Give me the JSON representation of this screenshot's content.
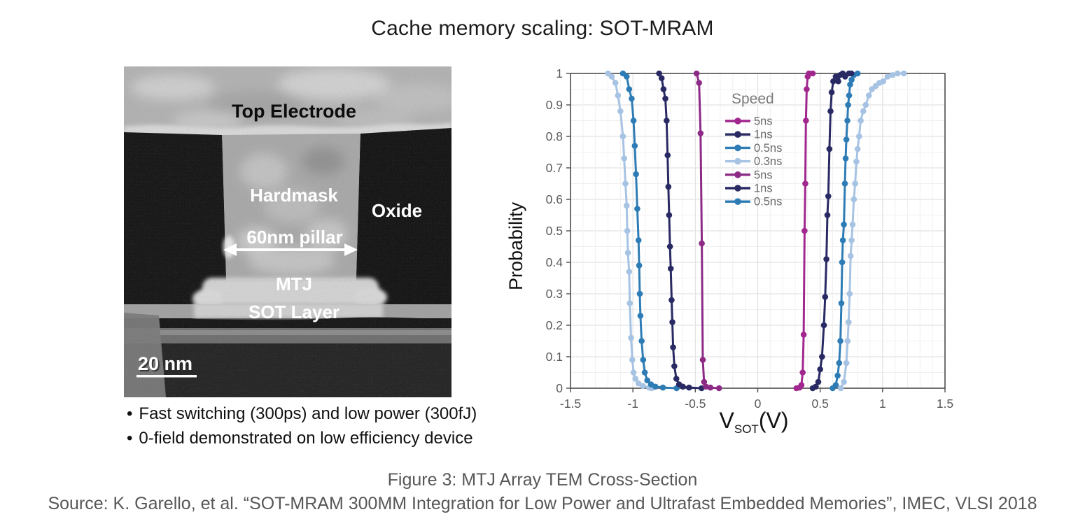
{
  "title": "Cache memory scaling: SOT-MRAM",
  "tem_figure": {
    "labels": {
      "top_electrode": "Top Electrode",
      "hardmask": "Hardmask",
      "oxide": "Oxide",
      "pillar": "60nm pillar",
      "mtj": "MTJ",
      "sot_layer": "SOT Layer",
      "scale_bar": "20 nm"
    },
    "bullets": {
      "marker": "•",
      "items": [
        "Fast switching (300ps) and low power (300fJ)",
        "0-field demonstrated on low efficiency device"
      ]
    }
  },
  "caption": {
    "figure_line": "Figure 3: MTJ Array TEM Cross-Section",
    "source_line": "Source: K. Garello, et al. “SOT-MRAM 300MM Integration for Low Power and Ultrafast Embedded Memories”, IMEC, VLSI 2018"
  },
  "chart_data": {
    "type": "line",
    "ylabel": "Probability",
    "xlabel_parts": {
      "main": "V",
      "sub": "SOT",
      "unit": "(V)"
    },
    "xlim": [
      -1.5,
      1.5
    ],
    "ylim": [
      0,
      1
    ],
    "grid": true,
    "xticks": [
      {
        "v": -1.5,
        "label": "-1.5"
      },
      {
        "v": -1,
        "label": "-1"
      },
      {
        "v": -0.5,
        "label": "-0.5"
      },
      {
        "v": 0,
        "label": "0"
      },
      {
        "v": 0.5,
        "label": "0.5"
      },
      {
        "v": 1,
        "label": "1"
      },
      {
        "v": 1.5,
        "label": "1.5"
      }
    ],
    "yticks": [
      {
        "v": 0,
        "label": "0"
      },
      {
        "v": 0.1,
        "label": "0.1"
      },
      {
        "v": 0.2,
        "label": "0.2"
      },
      {
        "v": 0.3,
        "label": "0.3"
      },
      {
        "v": 0.4,
        "label": "0.4"
      },
      {
        "v": 0.5,
        "label": "0.5"
      },
      {
        "v": 0.6,
        "label": "0.6"
      },
      {
        "v": 0.7,
        "label": "0.7"
      },
      {
        "v": 0.8,
        "label": "0.8"
      },
      {
        "v": 0.9,
        "label": "0.9"
      },
      {
        "v": 1,
        "label": "1"
      }
    ],
    "colors": {
      "magenta_bright": "#a1278e",
      "magenta": "#8c2a86",
      "navy": "#292a63",
      "blue": "#2e7cb5",
      "light_blue": "#a6c3e3"
    },
    "legend": {
      "title": "Speed",
      "position": "upper-center",
      "entries": [
        {
          "label": "5ns",
          "color": "#a1278e"
        },
        {
          "label": "1ns",
          "color": "#292a63"
        },
        {
          "label": "0.5ns",
          "color": "#2e7cb5"
        },
        {
          "label": "0.3ns",
          "color": "#a6c3e3"
        },
        {
          "label": "5ns",
          "color": "#8c2a86"
        },
        {
          "label": "1ns",
          "color": "#292a63"
        },
        {
          "label": "0.5ns",
          "color": "#2e7cb5"
        }
      ]
    },
    "series": [
      {
        "name": "0.3ns",
        "branch": "negative",
        "color": "#a6c3e3",
        "points": [
          [
            -1.2,
            1
          ],
          [
            -1.17,
            0.99
          ],
          [
            -1.14,
            0.97
          ],
          [
            -1.12,
            0.93
          ],
          [
            -1.1,
            0.88
          ],
          [
            -1.08,
            0.8
          ],
          [
            -1.07,
            0.73
          ],
          [
            -1.06,
            0.65
          ],
          [
            -1.05,
            0.58
          ],
          [
            -1.045,
            0.5
          ],
          [
            -1.04,
            0.43
          ],
          [
            -1.03,
            0.37
          ],
          [
            -1.025,
            0.27
          ],
          [
            -1.015,
            0.16
          ],
          [
            -1.005,
            0.09
          ],
          [
            -0.995,
            0.05
          ],
          [
            -0.98,
            0.03
          ],
          [
            -0.955,
            0.015
          ],
          [
            -0.92,
            0.007
          ],
          [
            -0.87,
            0.002
          ],
          [
            -0.85,
            0
          ]
        ]
      },
      {
        "name": "0.3ns",
        "branch": "positive",
        "color": "#a6c3e3",
        "points": [
          [
            0.665,
            0
          ],
          [
            0.69,
            0.02
          ],
          [
            0.71,
            0.08
          ],
          [
            0.72,
            0.15
          ],
          [
            0.728,
            0.21
          ],
          [
            0.736,
            0.3
          ],
          [
            0.744,
            0.42
          ],
          [
            0.752,
            0.47
          ],
          [
            0.76,
            0.52
          ],
          [
            0.77,
            0.6
          ],
          [
            0.78,
            0.65
          ],
          [
            0.79,
            0.72
          ],
          [
            0.8,
            0.76
          ],
          [
            0.812,
            0.8
          ],
          [
            0.825,
            0.85
          ],
          [
            0.845,
            0.88
          ],
          [
            0.865,
            0.9
          ],
          [
            0.89,
            0.93
          ],
          [
            0.915,
            0.95
          ],
          [
            0.945,
            0.96
          ],
          [
            0.975,
            0.97
          ],
          [
            1.005,
            0.975
          ],
          [
            1.04,
            0.99
          ],
          [
            1.08,
            0.995
          ],
          [
            1.12,
            1
          ],
          [
            1.17,
            1
          ]
        ]
      },
      {
        "name": "0.5ns",
        "branch": "negative",
        "color": "#2e7cb5",
        "points": [
          [
            -1.08,
            1
          ],
          [
            -1.05,
            0.99
          ],
          [
            -1.03,
            0.95
          ],
          [
            -1.01,
            0.92
          ],
          [
            -0.995,
            0.85
          ],
          [
            -0.985,
            0.77
          ],
          [
            -0.975,
            0.68
          ],
          [
            -0.965,
            0.57
          ],
          [
            -0.955,
            0.47
          ],
          [
            -0.95,
            0.39
          ],
          [
            -0.945,
            0.3
          ],
          [
            -0.94,
            0.23
          ],
          [
            -0.93,
            0.15
          ],
          [
            -0.918,
            0.09
          ],
          [
            -0.905,
            0.05
          ],
          [
            -0.885,
            0.025
          ],
          [
            -0.855,
            0.012
          ],
          [
            -0.82,
            0.005
          ],
          [
            -0.76,
            0.002
          ],
          [
            -0.65,
            0
          ]
        ]
      },
      {
        "name": "0.5ns",
        "branch": "positive",
        "color": "#2e7cb5",
        "points": [
          [
            0.6,
            0
          ],
          [
            0.625,
            0.01
          ],
          [
            0.64,
            0.04
          ],
          [
            0.652,
            0.08
          ],
          [
            0.662,
            0.15
          ],
          [
            0.67,
            0.27
          ],
          [
            0.676,
            0.4
          ],
          [
            0.682,
            0.47
          ],
          [
            0.69,
            0.52
          ],
          [
            0.698,
            0.65
          ],
          [
            0.704,
            0.73
          ],
          [
            0.71,
            0.79
          ],
          [
            0.718,
            0.85
          ],
          [
            0.724,
            0.9
          ],
          [
            0.732,
            0.93
          ],
          [
            0.74,
            0.965
          ],
          [
            0.752,
            0.98
          ],
          [
            0.77,
            0.995
          ],
          [
            0.8,
            1
          ]
        ]
      },
      {
        "name": "1ns",
        "branch": "negative",
        "color": "#292a63",
        "points": [
          [
            -0.79,
            1
          ],
          [
            -0.77,
            0.985
          ],
          [
            -0.755,
            0.95
          ],
          [
            -0.74,
            0.92
          ],
          [
            -0.73,
            0.85
          ],
          [
            -0.722,
            0.74
          ],
          [
            -0.716,
            0.64
          ],
          [
            -0.71,
            0.55
          ],
          [
            -0.703,
            0.45
          ],
          [
            -0.697,
            0.38
          ],
          [
            -0.69,
            0.28
          ],
          [
            -0.684,
            0.21
          ],
          [
            -0.678,
            0.13
          ],
          [
            -0.668,
            0.07
          ],
          [
            -0.652,
            0.03
          ],
          [
            -0.63,
            0.012
          ],
          [
            -0.6,
            0.005
          ],
          [
            -0.55,
            0.002
          ],
          [
            -0.45,
            0
          ]
        ]
      },
      {
        "name": "1ns",
        "branch": "positive",
        "color": "#292a63",
        "points": [
          [
            0.44,
            0
          ],
          [
            0.465,
            0.005
          ],
          [
            0.485,
            0.02
          ],
          [
            0.5,
            0.06
          ],
          [
            0.515,
            0.1
          ],
          [
            0.53,
            0.2
          ],
          [
            0.54,
            0.29
          ],
          [
            0.55,
            0.41
          ],
          [
            0.558,
            0.55
          ],
          [
            0.565,
            0.61
          ],
          [
            0.574,
            0.76
          ],
          [
            0.583,
            0.88
          ],
          [
            0.592,
            0.94
          ],
          [
            0.605,
            0.975
          ],
          [
            0.625,
            0.99
          ],
          [
            0.645,
            0.975
          ],
          [
            0.66,
            0.995
          ],
          [
            0.68,
            1
          ],
          [
            0.7,
            0.99
          ],
          [
            0.73,
            1
          ],
          [
            0.75,
            1
          ]
        ]
      },
      {
        "name": "5ns",
        "branch": "negative",
        "color": "#8c2a86",
        "points": [
          [
            -0.49,
            1
          ],
          [
            -0.47,
            0.97
          ],
          [
            -0.458,
            0.81
          ],
          [
            -0.448,
            0.46
          ],
          [
            -0.44,
            0.09
          ],
          [
            -0.43,
            0.02
          ],
          [
            -0.415,
            0.005
          ],
          [
            -0.38,
            0.002
          ],
          [
            -0.31,
            0
          ]
        ]
      },
      {
        "name": "5ns",
        "branch": "positive",
        "color": "#a1278e",
        "points": [
          [
            0.31,
            0
          ],
          [
            0.335,
            0.002
          ],
          [
            0.35,
            0.01
          ],
          [
            0.36,
            0.05
          ],
          [
            0.368,
            0.17
          ],
          [
            0.375,
            0.5
          ],
          [
            0.381,
            0.65
          ],
          [
            0.386,
            0.85
          ],
          [
            0.392,
            0.95
          ],
          [
            0.4,
            0.99
          ],
          [
            0.41,
            1
          ],
          [
            0.44,
            1
          ]
        ]
      }
    ]
  }
}
